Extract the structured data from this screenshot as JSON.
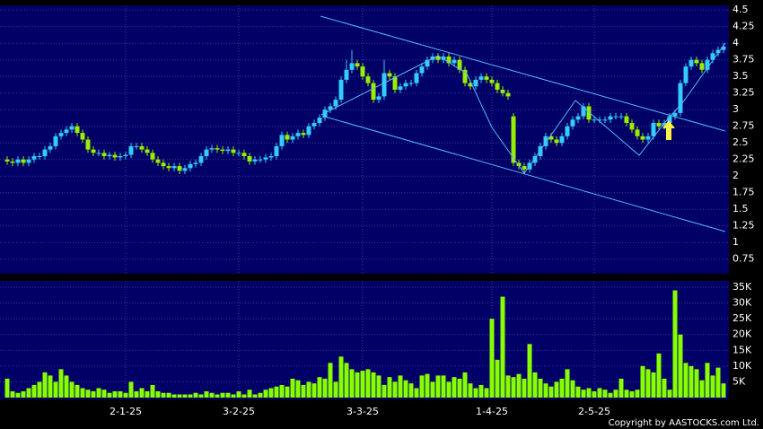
{
  "chart_data": {
    "type": "candlestick",
    "categories": [
      null,
      null,
      null,
      null,
      null,
      null,
      null,
      null,
      null,
      null,
      null,
      null,
      null,
      null,
      null,
      null,
      null,
      null,
      null,
      null,
      null,
      null,
      "2-1-25",
      null,
      null,
      null,
      null,
      null,
      null,
      null,
      null,
      null,
      null,
      null,
      null,
      null,
      null,
      null,
      null,
      null,
      null,
      null,
      null,
      "3-2-25",
      null,
      null,
      null,
      null,
      null,
      null,
      null,
      null,
      null,
      null,
      null,
      null,
      null,
      null,
      null,
      null,
      null,
      null,
      null,
      null,
      null,
      null,
      "3-3-25",
      null,
      null,
      null,
      null,
      null,
      null,
      null,
      null,
      null,
      null,
      null,
      null,
      null,
      null,
      null,
      null,
      null,
      null,
      null,
      null,
      null,
      null,
      null,
      "1-4-25",
      null,
      null,
      null,
      null,
      null,
      null,
      null,
      null,
      null,
      null,
      null,
      null,
      null,
      null,
      null,
      null,
      null,
      null,
      "2-5-25",
      null,
      null,
      null,
      null,
      null,
      null,
      null,
      null,
      null,
      null,
      null,
      null,
      null,
      null,
      null,
      null,
      null,
      null,
      null,
      null,
      null,
      null,
      null,
      null
    ],
    "open": [
      2.25,
      2.22,
      2.2,
      2.25,
      2.2,
      2.25,
      2.3,
      2.3,
      2.4,
      2.45,
      2.6,
      2.65,
      2.7,
      2.75,
      2.65,
      2.55,
      2.4,
      2.35,
      2.35,
      2.3,
      2.32,
      2.28,
      2.3,
      2.32,
      2.45,
      2.45,
      2.4,
      2.35,
      2.25,
      2.2,
      2.15,
      2.12,
      2.15,
      2.08,
      2.12,
      2.18,
      2.2,
      2.3,
      2.4,
      2.42,
      2.4,
      2.38,
      2.4,
      2.35,
      2.35,
      2.3,
      2.22,
      2.25,
      2.25,
      2.28,
      2.3,
      2.45,
      2.62,
      2.55,
      2.6,
      2.65,
      2.62,
      2.75,
      2.8,
      2.88,
      3.0,
      3.05,
      3.15,
      3.45,
      3.6,
      3.7,
      3.65,
      3.5,
      3.4,
      3.15,
      3.2,
      3.55,
      3.5,
      3.3,
      3.35,
      3.4,
      3.4,
      3.55,
      3.65,
      3.75,
      3.8,
      3.75,
      3.8,
      3.7,
      3.75,
      3.6,
      3.4,
      3.35,
      3.45,
      3.5,
      3.45,
      3.4,
      3.3,
      3.25,
      2.9,
      2.2,
      2.15,
      2.1,
      2.2,
      2.3,
      2.45,
      2.6,
      2.55,
      2.5,
      2.6,
      2.75,
      2.85,
      2.9,
      3.05,
      2.85,
      2.85,
      2.85,
      2.85,
      2.9,
      2.9,
      2.9,
      2.8,
      2.7,
      2.6,
      2.55,
      2.6,
      2.8,
      2.75,
      2.8,
      2.9,
      2.95,
      3.4,
      3.65,
      3.75,
      3.7,
      3.6,
      3.75,
      3.85,
      3.9
    ],
    "high": [
      2.3,
      2.27,
      2.3,
      2.3,
      2.3,
      2.35,
      2.35,
      2.45,
      2.5,
      2.65,
      2.7,
      2.75,
      2.8,
      2.8,
      2.7,
      2.6,
      2.45,
      2.4,
      2.4,
      2.37,
      2.37,
      2.35,
      2.37,
      2.5,
      2.5,
      2.5,
      2.45,
      2.4,
      2.3,
      2.25,
      2.2,
      2.2,
      2.2,
      2.17,
      2.23,
      2.25,
      2.35,
      2.45,
      2.47,
      2.47,
      2.45,
      2.45,
      2.45,
      2.4,
      2.4,
      2.35,
      2.3,
      2.3,
      2.33,
      2.35,
      2.5,
      2.67,
      2.67,
      2.65,
      2.7,
      2.7,
      2.8,
      2.85,
      2.93,
      3.05,
      3.1,
      3.2,
      3.5,
      3.75,
      3.9,
      3.75,
      3.7,
      3.55,
      3.45,
      3.25,
      3.75,
      3.6,
      3.55,
      3.4,
      3.45,
      3.45,
      3.6,
      3.7,
      3.8,
      3.85,
      3.85,
      3.85,
      3.85,
      3.8,
      3.8,
      3.65,
      3.45,
      3.5,
      3.55,
      3.55,
      3.5,
      3.45,
      3.35,
      3.3,
      2.95,
      2.25,
      2.2,
      2.25,
      2.35,
      2.5,
      2.65,
      2.65,
      2.6,
      2.65,
      2.8,
      2.9,
      2.95,
      3.1,
      3.1,
      2.9,
      2.9,
      2.9,
      2.95,
      2.95,
      2.95,
      2.95,
      2.85,
      2.75,
      2.65,
      2.65,
      2.85,
      2.85,
      2.85,
      2.95,
      3.0,
      3.45,
      3.7,
      3.8,
      3.8,
      3.75,
      3.8,
      3.9,
      3.95,
      4.0
    ],
    "low": [
      2.17,
      2.15,
      2.15,
      2.15,
      2.15,
      2.2,
      2.25,
      2.25,
      2.35,
      2.4,
      2.55,
      2.6,
      2.65,
      2.6,
      2.5,
      2.35,
      2.3,
      2.3,
      2.25,
      2.25,
      2.23,
      2.23,
      2.25,
      2.27,
      2.4,
      2.35,
      2.3,
      2.2,
      2.15,
      2.1,
      2.07,
      2.07,
      2.03,
      2.03,
      2.07,
      2.13,
      2.15,
      2.25,
      2.35,
      2.35,
      2.33,
      2.33,
      2.3,
      2.3,
      2.25,
      2.17,
      2.17,
      2.2,
      2.2,
      2.23,
      2.25,
      2.4,
      2.5,
      2.5,
      2.55,
      2.57,
      2.57,
      2.7,
      2.75,
      2.83,
      2.95,
      3.0,
      3.1,
      3.4,
      3.55,
      3.6,
      3.45,
      3.35,
      3.1,
      3.1,
      3.15,
      3.45,
      3.25,
      3.25,
      3.3,
      3.35,
      3.35,
      3.5,
      3.6,
      3.7,
      3.7,
      3.7,
      3.65,
      3.65,
      3.55,
      3.35,
      3.3,
      3.3,
      3.4,
      3.4,
      3.35,
      3.25,
      3.2,
      3.15,
      2.15,
      2.1,
      2.03,
      2.05,
      2.15,
      2.25,
      2.4,
      2.5,
      2.45,
      2.45,
      2.55,
      2.7,
      2.8,
      2.85,
      2.8,
      2.8,
      2.8,
      2.8,
      2.8,
      2.85,
      2.85,
      2.75,
      2.65,
      2.55,
      2.5,
      2.5,
      2.55,
      2.7,
      2.7,
      2.75,
      2.85,
      2.9,
      3.35,
      3.6,
      3.65,
      3.55,
      3.55,
      3.7,
      3.8,
      3.85
    ],
    "close": [
      2.22,
      2.2,
      2.25,
      2.2,
      2.25,
      2.3,
      2.3,
      2.4,
      2.45,
      2.6,
      2.65,
      2.7,
      2.75,
      2.65,
      2.55,
      2.4,
      2.35,
      2.35,
      2.3,
      2.32,
      2.28,
      2.3,
      2.32,
      2.45,
      2.45,
      2.4,
      2.35,
      2.25,
      2.2,
      2.15,
      2.12,
      2.15,
      2.08,
      2.12,
      2.18,
      2.2,
      2.3,
      2.4,
      2.42,
      2.4,
      2.38,
      2.4,
      2.35,
      2.35,
      2.3,
      2.22,
      2.25,
      2.25,
      2.28,
      2.3,
      2.45,
      2.62,
      2.55,
      2.6,
      2.65,
      2.62,
      2.75,
      2.8,
      2.88,
      3.0,
      3.05,
      3.15,
      3.45,
      3.6,
      3.7,
      3.65,
      3.5,
      3.4,
      3.15,
      3.2,
      3.55,
      3.5,
      3.3,
      3.35,
      3.4,
      3.4,
      3.55,
      3.65,
      3.75,
      3.8,
      3.75,
      3.8,
      3.7,
      3.75,
      3.6,
      3.4,
      3.35,
      3.45,
      3.5,
      3.45,
      3.4,
      3.3,
      3.25,
      3.2,
      2.2,
      2.15,
      2.1,
      2.2,
      2.3,
      2.45,
      2.6,
      2.55,
      2.5,
      2.6,
      2.75,
      2.85,
      2.9,
      3.05,
      2.85,
      2.85,
      2.85,
      2.85,
      2.9,
      2.9,
      2.9,
      2.8,
      2.7,
      2.6,
      2.55,
      2.6,
      2.8,
      2.75,
      2.8,
      2.9,
      2.95,
      3.4,
      3.65,
      3.75,
      3.7,
      3.6,
      3.75,
      3.85,
      3.9,
      3.95
    ],
    "up_color": "#33ccff",
    "down_color": "#99ee00",
    "ylim": [
      0.53,
      4.57
    ],
    "yticks": [
      0.75,
      1,
      1.25,
      1.5,
      1.75,
      2,
      2.25,
      2.5,
      2.75,
      3,
      3.25,
      3.5,
      3.75,
      4,
      4.25,
      4.5
    ],
    "grid": true,
    "volume": {
      "type": "bar",
      "color": "#88ff00",
      "values": [
        6000,
        2000,
        1500,
        2000,
        3000,
        4000,
        5000,
        8000,
        7000,
        5000,
        9000,
        7000,
        5000,
        4000,
        3000,
        2500,
        2000,
        3000,
        2500,
        1500,
        2000,
        2000,
        1500,
        5000,
        2000,
        3000,
        2000,
        4000,
        2000,
        1500,
        1500,
        1000,
        1000,
        1000,
        1000,
        1500,
        1000,
        2000,
        1500,
        1000,
        1500,
        1500,
        1000,
        2000,
        1000,
        2500,
        1000,
        1500,
        2500,
        3000,
        3500,
        4000,
        3500,
        6000,
        5500,
        4000,
        5000,
        4500,
        6500,
        6000,
        11000,
        5000,
        13000,
        11000,
        9000,
        8000,
        8500,
        9000,
        8000,
        7000,
        4000,
        6500,
        5000,
        7000,
        5500,
        4500,
        3000,
        7000,
        7500,
        5000,
        7000,
        7000,
        5000,
        6500,
        6000,
        8000,
        4500,
        3000,
        4000,
        3000,
        25000,
        12000,
        32000,
        7000,
        6500,
        7500,
        6000,
        17000,
        8000,
        6000,
        4500,
        3500,
        5000,
        6000,
        9000,
        5500,
        3500,
        2500,
        3000,
        2000,
        3000,
        2500,
        1500,
        2500,
        6000,
        2500,
        2000,
        2500,
        10000,
        9000,
        8000,
        14000,
        6000,
        2500,
        34000,
        20000,
        11000,
        10000,
        9000,
        5500,
        11000,
        7000,
        9500,
        4500
      ],
      "ylim": [
        0,
        37000
      ],
      "yticks": [
        {
          "value": 5000,
          "label": "5K"
        },
        {
          "value": 10000,
          "label": "10K"
        },
        {
          "value": 15000,
          "label": "15K"
        },
        {
          "value": 20000,
          "label": "20K"
        },
        {
          "value": 25000,
          "label": "25K"
        },
        {
          "value": 30000,
          "label": "30K"
        },
        {
          "value": 35000,
          "label": "35K"
        }
      ]
    }
  },
  "footer": "Copyright by AASTOCKS.com Ltd."
}
